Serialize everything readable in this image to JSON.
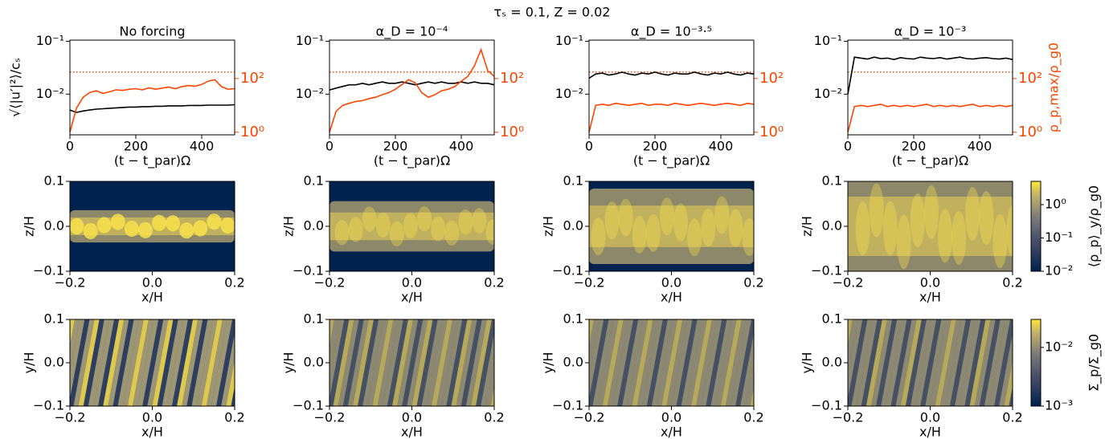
{
  "title": "τₛ = 0.1, Z = 0.02",
  "chart_data": [
    {
      "type": "line",
      "title": "No forcing",
      "x_label": "(t − t_par)Ω",
      "y_label": "√⟨|u′|²⟩/cₛ",
      "xlim": [
        0,
        500
      ],
      "xticks": [
        0,
        200,
        400
      ],
      "ylim": [
        0.0017,
        0.105
      ],
      "y_scale": "log",
      "yticks": [
        {
          "value": 0.01,
          "label": "10⁻²"
        },
        {
          "value": 0.1,
          "label": "10⁻¹"
        }
      ],
      "y2lim": [
        0.8,
        2700
      ],
      "y2_scale": "log",
      "y2ticks": [
        {
          "value": 1,
          "label": "10⁰"
        },
        {
          "value": 100,
          "label": "10²"
        }
      ],
      "x": [
        0,
        20,
        40,
        60,
        80,
        100,
        120,
        140,
        160,
        180,
        200,
        220,
        240,
        260,
        280,
        300,
        320,
        340,
        360,
        380,
        400,
        420,
        440,
        460,
        480,
        500
      ],
      "series": [
        {
          "color": "#000000",
          "values": [
            0.005,
            0.0045,
            0.0048,
            0.005,
            0.0052,
            0.0053,
            0.0054,
            0.0055,
            0.0056,
            0.0057,
            0.0057,
            0.0058,
            0.0058,
            0.0059,
            0.0059,
            0.006,
            0.006,
            0.006,
            0.0061,
            0.0061,
            0.0061,
            0.0062,
            0.0062,
            0.0062,
            0.0062,
            0.0063
          ]
        },
        {
          "color": "#ff4500",
          "axis": "y2",
          "values": [
            1,
            8,
            20,
            30,
            35,
            28,
            32,
            38,
            36,
            40,
            42,
            38,
            45,
            40,
            44,
            48,
            42,
            50,
            55,
            52,
            60,
            80,
            90,
            50,
            40,
            42
          ]
        }
      ],
      "hline": {
        "value": 175,
        "axis": "y2",
        "color": "#ff4500"
      }
    },
    {
      "type": "line",
      "title": "α_D = 10⁻⁴",
      "x_label": "(t − t_par)Ω",
      "xlim": [
        0,
        500
      ],
      "xticks": [
        0,
        200,
        400
      ],
      "ylim": [
        0.0017,
        0.105
      ],
      "y_scale": "log",
      "yticks": [
        {
          "value": 0.01,
          "label": "10⁻²"
        },
        {
          "value": 0.1,
          "label": "10⁻¹"
        }
      ],
      "y2lim": [
        0.8,
        2700
      ],
      "y2_scale": "log",
      "y2ticks": [
        {
          "value": 1,
          "label": "10⁰"
        },
        {
          "value": 100,
          "label": "10²"
        }
      ],
      "x": [
        0,
        20,
        40,
        60,
        80,
        100,
        120,
        140,
        160,
        180,
        200,
        220,
        240,
        260,
        280,
        300,
        320,
        340,
        360,
        380,
        400,
        420,
        440,
        460,
        480,
        500
      ],
      "series": [
        {
          "color": "#000000",
          "values": [
            0.012,
            0.013,
            0.014,
            0.015,
            0.015,
            0.016,
            0.015,
            0.016,
            0.017,
            0.016,
            0.016,
            0.017,
            0.016,
            0.015,
            0.016,
            0.017,
            0.016,
            0.017,
            0.016,
            0.016,
            0.017,
            0.016,
            0.017,
            0.016,
            0.016,
            0.015
          ]
        },
        {
          "color": "#ff4500",
          "axis": "y2",
          "values": [
            1,
            6,
            10,
            12,
            14,
            15,
            18,
            20,
            25,
            30,
            40,
            60,
            90,
            70,
            30,
            20,
            25,
            35,
            40,
            50,
            80,
            120,
            300,
            1200,
            200,
            120
          ]
        }
      ],
      "hline": {
        "value": 175,
        "axis": "y2",
        "color": "#ff4500"
      }
    },
    {
      "type": "line",
      "title": "α_D = 10⁻³·⁵",
      "x_label": "(t − t_par)Ω",
      "xlim": [
        0,
        500
      ],
      "xticks": [
        0,
        200,
        400
      ],
      "ylim": [
        0.0017,
        0.105
      ],
      "y_scale": "log",
      "yticks": [
        {
          "value": 0.01,
          "label": "10⁻²"
        },
        {
          "value": 0.1,
          "label": "10⁻¹"
        }
      ],
      "y2lim": [
        0.8,
        2700
      ],
      "y2_scale": "log",
      "y2ticks": [
        {
          "value": 1,
          "label": "10⁰"
        },
        {
          "value": 100,
          "label": "10²"
        }
      ],
      "x": [
        0,
        20,
        40,
        60,
        80,
        100,
        120,
        140,
        160,
        180,
        200,
        220,
        240,
        260,
        280,
        300,
        320,
        340,
        360,
        380,
        400,
        420,
        440,
        460,
        480,
        500
      ],
      "series": [
        {
          "color": "#000000",
          "values": [
            0.02,
            0.024,
            0.025,
            0.023,
            0.024,
            0.026,
            0.024,
            0.023,
            0.025,
            0.024,
            0.026,
            0.024,
            0.023,
            0.025,
            0.024,
            0.024,
            0.026,
            0.024,
            0.023,
            0.025,
            0.024,
            0.026,
            0.024,
            0.023,
            0.025,
            0.024
          ]
        },
        {
          "color": "#ff4500",
          "axis": "y2",
          "values": [
            1,
            10,
            11,
            10,
            12,
            11,
            10,
            11,
            12,
            10,
            11,
            11,
            10,
            12,
            11,
            10,
            11,
            12,
            11,
            10,
            11,
            12,
            11,
            10,
            12,
            11
          ]
        }
      ],
      "hline": {
        "value": 175,
        "axis": "y2",
        "color": "#ff4500"
      }
    },
    {
      "type": "line",
      "title": "α_D = 10⁻³",
      "x_label": "(t − t_par)Ω",
      "y2_label": "ρ_p,max/ρ_g0",
      "xlim": [
        0,
        500
      ],
      "xticks": [
        0,
        200,
        400
      ],
      "ylim": [
        0.0017,
        0.105
      ],
      "y_scale": "log",
      "yticks": [
        {
          "value": 0.01,
          "label": "10⁻²"
        },
        {
          "value": 0.1,
          "label": "10⁻¹"
        }
      ],
      "y2lim": [
        0.8,
        2700
      ],
      "y2_scale": "log",
      "y2ticks": [
        {
          "value": 1,
          "label": "10⁰"
        },
        {
          "value": 100,
          "label": "10²"
        }
      ],
      "x": [
        0,
        20,
        40,
        60,
        80,
        100,
        120,
        140,
        160,
        180,
        200,
        220,
        240,
        260,
        280,
        300,
        320,
        340,
        360,
        380,
        400,
        420,
        440,
        460,
        480,
        500
      ],
      "series": [
        {
          "color": "#000000",
          "values": [
            0.01,
            0.05,
            0.048,
            0.046,
            0.05,
            0.047,
            0.048,
            0.045,
            0.049,
            0.047,
            0.046,
            0.05,
            0.048,
            0.047,
            0.049,
            0.046,
            0.048,
            0.05,
            0.047,
            0.046,
            0.048,
            0.049,
            0.047,
            0.046,
            0.048,
            0.045
          ]
        },
        {
          "color": "#ff4500",
          "axis": "y2",
          "values": [
            1,
            9,
            10,
            9,
            10,
            11,
            9,
            10,
            9,
            10,
            9,
            10,
            11,
            9,
            10,
            9,
            10,
            9,
            10,
            11,
            9,
            10,
            9,
            10,
            9,
            10
          ]
        }
      ],
      "hline": {
        "value": 175,
        "axis": "y2",
        "color": "#ff4500"
      }
    },
    {
      "type": "heatmap",
      "x_label": "x/H",
      "y_label": "z/H",
      "xlim": [
        -0.2,
        0.2
      ],
      "xticks": [
        {
          "value": -0.2,
          "label": "−0.2"
        },
        {
          "value": 0,
          "label": "0.0"
        },
        0.2
      ],
      "ylim": [
        -0.1,
        0.1
      ],
      "yticks": [
        {
          "value": -0.1,
          "label": "−0.1"
        },
        {
          "value": 0,
          "label": "0.0"
        },
        0.1
      ]
    },
    {
      "type": "heatmap",
      "x_label": "x/H",
      "y_label": "z/H",
      "xlim": [
        -0.2,
        0.2
      ],
      "xticks": [
        {
          "value": -0.2,
          "label": "−0.2"
        },
        {
          "value": 0,
          "label": "0.0"
        },
        0.2
      ],
      "ylim": [
        -0.1,
        0.1
      ],
      "yticks": [
        {
          "value": -0.1,
          "label": "−0.1"
        },
        {
          "value": 0,
          "label": "0.0"
        },
        0.1
      ]
    },
    {
      "type": "heatmap",
      "x_label": "x/H",
      "y_label": "z/H",
      "xlim": [
        -0.2,
        0.2
      ],
      "xticks": [
        {
          "value": -0.2,
          "label": "−0.2"
        },
        {
          "value": 0,
          "label": "0.0"
        },
        0.2
      ],
      "ylim": [
        -0.1,
        0.1
      ],
      "yticks": [
        {
          "value": -0.1,
          "label": "−0.1"
        },
        {
          "value": 0,
          "label": "0.0"
        },
        0.1
      ]
    },
    {
      "type": "heatmap",
      "x_label": "x/H",
      "y_label": "z/H",
      "xlim": [
        -0.2,
        0.2
      ],
      "xticks": [
        {
          "value": -0.2,
          "label": "−0.2"
        },
        {
          "value": 0,
          "label": "0.0"
        },
        0.2
      ],
      "ylim": [
        -0.1,
        0.1
      ],
      "yticks": [
        {
          "value": -0.1,
          "label": "−0.1"
        },
        {
          "value": 0,
          "label": "0.0"
        },
        0.1
      ],
      "colorbar": {
        "label": "⟨ρ_p⟩_y/ρ_g0",
        "scale": "log",
        "lim": [
          0.01,
          5
        ],
        "ticks": [
          {
            "value": 0.01,
            "label": "10⁻²"
          },
          {
            "value": 0.1,
            "label": "10⁻¹"
          },
          {
            "value": 1,
            "label": "10⁰"
          }
        ]
      }
    },
    {
      "type": "heatmap",
      "x_label": "x/H",
      "y_label": "y/H",
      "xlim": [
        -0.2,
        0.2
      ],
      "xticks": [
        {
          "value": -0.2,
          "label": "−0.2"
        },
        {
          "value": 0,
          "label": "0.0"
        },
        0.2
      ],
      "ylim": [
        -0.1,
        0.1
      ],
      "yticks": [
        {
          "value": -0.1,
          "label": "−0.1"
        },
        {
          "value": 0,
          "label": "0.0"
        },
        0.1
      ]
    },
    {
      "type": "heatmap",
      "x_label": "x/H",
      "y_label": "y/H",
      "xlim": [
        -0.2,
        0.2
      ],
      "xticks": [
        {
          "value": -0.2,
          "label": "−0.2"
        },
        {
          "value": 0,
          "label": "0.0"
        },
        0.2
      ],
      "ylim": [
        -0.1,
        0.1
      ],
      "yticks": [
        {
          "value": -0.1,
          "label": "−0.1"
        },
        {
          "value": 0,
          "label": "0.0"
        },
        0.1
      ]
    },
    {
      "type": "heatmap",
      "x_label": "x/H",
      "y_label": "y/H",
      "xlim": [
        -0.2,
        0.2
      ],
      "xticks": [
        {
          "value": -0.2,
          "label": "−0.2"
        },
        {
          "value": 0,
          "label": "0.0"
        },
        0.2
      ],
      "ylim": [
        -0.1,
        0.1
      ],
      "yticks": [
        {
          "value": -0.1,
          "label": "−0.1"
        },
        {
          "value": 0,
          "label": "0.0"
        },
        0.1
      ]
    },
    {
      "type": "heatmap",
      "x_label": "x/H",
      "y_label": "y/H",
      "xlim": [
        -0.2,
        0.2
      ],
      "xticks": [
        {
          "value": -0.2,
          "label": "−0.2"
        },
        {
          "value": 0,
          "label": "0.0"
        },
        0.2
      ],
      "ylim": [
        -0.1,
        0.1
      ],
      "yticks": [
        {
          "value": -0.1,
          "label": "−0.1"
        },
        {
          "value": 0,
          "label": "0.0"
        },
        0.1
      ],
      "colorbar": {
        "label": "Σ_p/Σ_g0",
        "scale": "log",
        "lim": [
          0.001,
          0.03
        ],
        "ticks": [
          {
            "value": 0.001,
            "label": "10⁻³"
          },
          {
            "value": 0.01,
            "label": "10⁻²"
          }
        ]
      }
    }
  ]
}
